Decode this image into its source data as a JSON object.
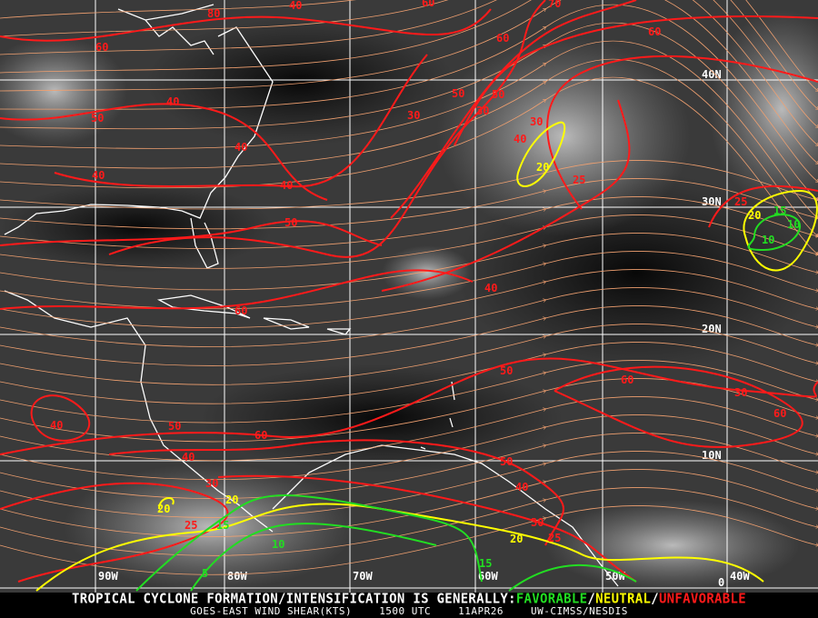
{
  "product": {
    "headline_prefix": "TROPICAL CYCLONE FORMATION/INTENSIFICATION IS GENERALLY:",
    "favorable": "FAVORABLE",
    "neutral": "NEUTRAL",
    "unfavorable": "UNFAVORABLE",
    "separator": "/",
    "satellite_product": "GOES-EAST WIND SHEAR(KTS)",
    "time": "1500 UTC",
    "date": "11APR26",
    "source": "UW-CIMSS/NESDIS"
  },
  "colors": {
    "favorable": "#22dd22",
    "neutral": "#ffff00",
    "unfavorable": "#ff1a1a",
    "streamlines": "#f0a070",
    "coastline": "#ffffff",
    "grid": "#ffffff"
  },
  "grid": {
    "longitudes": [
      "90W",
      "80W",
      "70W",
      "60W",
      "50W",
      "40W"
    ],
    "latitudes": [
      "40N",
      "30N",
      "20N",
      "10N",
      "0"
    ]
  },
  "contour_labels": {
    "unfavorable": [
      "60",
      "50",
      "40",
      "40",
      "40",
      "40",
      "50",
      "30",
      "50",
      "30",
      "50",
      "30",
      "40",
      "60",
      "70",
      "60",
      "25",
      "25",
      "40",
      "60",
      "50",
      "60",
      "30",
      "60",
      "40",
      "50",
      "60",
      "40",
      "30",
      "50",
      "40",
      "30",
      "25",
      "25",
      "80",
      "40",
      "60"
    ],
    "neutral": [
      "20",
      "20",
      "20",
      "20",
      "20"
    ],
    "favorable": [
      "15",
      "10",
      "10",
      "15",
      "10",
      "15",
      "5"
    ]
  }
}
